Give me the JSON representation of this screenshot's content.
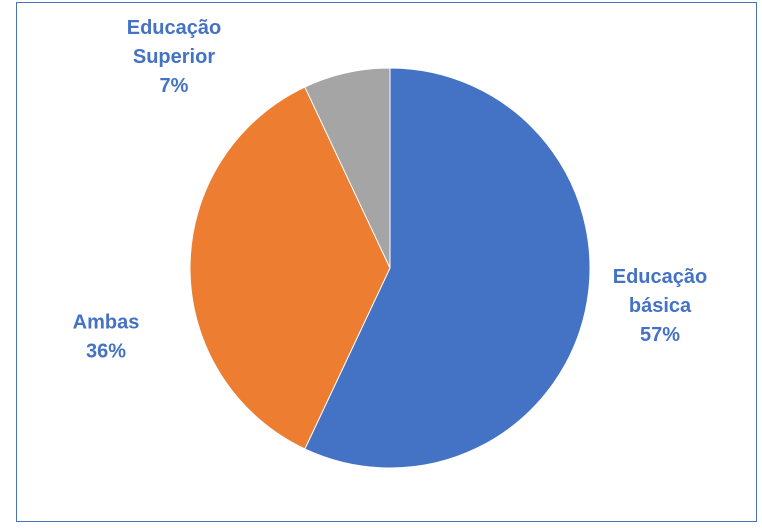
{
  "chart_data": {
    "type": "pie",
    "slices": [
      {
        "label_lines": [
          "Educação",
          "básica"
        ],
        "percent_label": "57%",
        "value": 57,
        "color": "#4472c4"
      },
      {
        "label_lines": [
          "Ambas"
        ],
        "percent_label": "36%",
        "value": 36,
        "color": "#ed7d31"
      },
      {
        "label_lines": [
          "Educação",
          "Superior"
        ],
        "percent_label": "7%",
        "value": 7,
        "color": "#a5a5a5"
      }
    ],
    "start_angle_deg": 0,
    "direction": "clockwise",
    "label_color": "#4472c4",
    "legend": "none"
  }
}
